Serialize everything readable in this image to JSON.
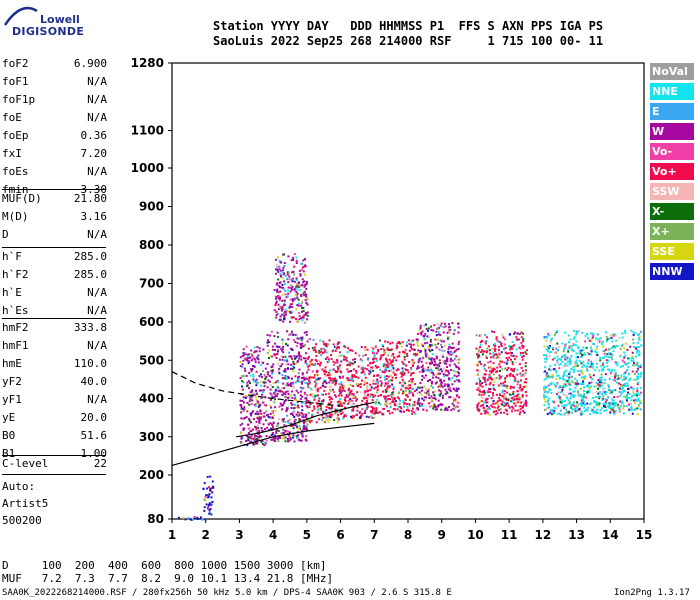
{
  "logo": {
    "line1": "Lowell",
    "line2": "DIGISONDE"
  },
  "header": {
    "line1": "Station YYYY DAY   DDD HHMMSS P1  FFS S AXN PPS IGA PS",
    "line2": "SaoLuis 2022 Sep25 268 214000 RSF     1 715 100 00- 11"
  },
  "params_group1": [
    {
      "name": "foF2",
      "value": "6.900"
    },
    {
      "name": "foF1",
      "value": "N/A"
    },
    {
      "name": "foF1p",
      "value": "N/A"
    },
    {
      "name": "foE",
      "value": "N/A"
    },
    {
      "name": "foEp",
      "value": "0.36"
    },
    {
      "name": "fxI",
      "value": "7.20"
    },
    {
      "name": "foEs",
      "value": "N/A"
    },
    {
      "name": "fmin",
      "value": "3.30"
    }
  ],
  "params_group2": [
    {
      "name": "MUF(D)",
      "value": "21.80"
    },
    {
      "name": "M(D)",
      "value": "3.16"
    },
    {
      "name": "D",
      "value": "N/A"
    }
  ],
  "params_group3": [
    {
      "name": "h`F",
      "value": "285.0"
    },
    {
      "name": "h`F2",
      "value": "285.0"
    },
    {
      "name": "h`E",
      "value": "N/A"
    },
    {
      "name": "h`Es",
      "value": "N/A"
    }
  ],
  "params_group4": [
    {
      "name": "hmF2",
      "value": "333.8"
    },
    {
      "name": "hmF1",
      "value": "N/A"
    },
    {
      "name": "hmE",
      "value": "110.0"
    },
    {
      "name": "yF2",
      "value": "40.0"
    },
    {
      "name": "yF1",
      "value": "N/A"
    },
    {
      "name": "yE",
      "value": "20.0"
    },
    {
      "name": "B0",
      "value": "51.6"
    },
    {
      "name": "B1",
      "value": "1.00"
    }
  ],
  "clevel": {
    "name": "C-level",
    "value": "22"
  },
  "autoscale": {
    "line1": "Auto:",
    "line2": "Artist5",
    "line3": "500200"
  },
  "legend": [
    {
      "label": "NoVal",
      "color": "#9e9e9e"
    },
    {
      "label": "NNE",
      "color": "#14e4ee"
    },
    {
      "label": "E",
      "color": "#3aa7f0"
    },
    {
      "label": "W",
      "color": "#a6079e"
    },
    {
      "label": "Vo-",
      "color": "#f040a8"
    },
    {
      "label": "Vo+",
      "color": "#f00a4e"
    },
    {
      "label": "SSW",
      "color": "#f7b4b4"
    },
    {
      "label": "X-",
      "color": "#0b6e0b"
    },
    {
      "label": "X+",
      "color": "#7cb35a"
    },
    {
      "label": "SSE",
      "color": "#d6d610"
    },
    {
      "label": "NNW",
      "color": "#1414c8"
    }
  ],
  "bottom": {
    "d_row": "D     100  200  400  600  800 1000 1500 3000 [km]",
    "muf_row": "MUF   7.2  7.3  7.7  8.2  9.0 10.1 13.4 21.8 [MHz]",
    "footer_left": "SAA0K_2022268214000.RSF / 280fx256h 50 kHz 5.0 km / DPS-4 SAA0K 903 / 2.6 S 315.8 E",
    "footer_right": "Ion2Png 1.3.17"
  },
  "chart_data": {
    "type": "scatter",
    "xlim": [
      1,
      15
    ],
    "x_ticks": [
      "1",
      "2",
      "3",
      "4",
      "5",
      "6",
      "7",
      "8",
      "9",
      "10",
      "11",
      "12",
      "13",
      "14",
      "15"
    ],
    "y_axis_note": "piecewise: 80-600 linear, 600-1280 compressed",
    "y_ticks": [
      "80",
      "200",
      "300",
      "400",
      "500",
      "600",
      "700",
      "800",
      "900",
      "1000",
      "1100",
      "1280"
    ],
    "echo_clusters": [
      {
        "x": [
          1.0,
          2.1
        ],
        "y": [
          80,
          90
        ],
        "dominant": "NNW"
      },
      {
        "x": [
          1.9,
          2.2
        ],
        "y": [
          95,
          200
        ],
        "dominant": "NNW"
      },
      {
        "x": [
          3.0,
          3.8
        ],
        "y": [
          280,
          540
        ],
        "dominant": "W"
      },
      {
        "x": [
          3.8,
          5.0
        ],
        "y": [
          290,
          580
        ],
        "dominant": "W"
      },
      {
        "x": [
          4.0,
          5.0
        ],
        "y": [
          600,
          780
        ],
        "dominant": "W"
      },
      {
        "x": [
          5.0,
          6.0
        ],
        "y": [
          340,
          560
        ],
        "dominant": "Vo+"
      },
      {
        "x": [
          6.0,
          7.0
        ],
        "y": [
          350,
          540
        ],
        "dominant": "Vo+"
      },
      {
        "x": [
          7.0,
          8.2
        ],
        "y": [
          360,
          560
        ],
        "dominant": "Vo+"
      },
      {
        "x": [
          8.2,
          9.5
        ],
        "y": [
          370,
          600
        ],
        "dominant": "W"
      },
      {
        "x": [
          10.0,
          11.5
        ],
        "y": [
          360,
          580
        ],
        "dominant": "Vo+"
      },
      {
        "x": [
          12.0,
          14.9
        ],
        "y": [
          360,
          580
        ],
        "dominant": "NNE"
      }
    ],
    "profile_curves": [
      {
        "name": "lower trace",
        "x": [
          1.0,
          2.0,
          3.0,
          4.0,
          5.0,
          6.0,
          7.0
        ],
        "y": [
          225,
          250,
          275,
          300,
          315,
          325,
          335
        ]
      },
      {
        "name": "upper trace",
        "x": [
          2.9,
          3.6,
          4.5,
          5.3,
          6.2,
          7.0
        ],
        "y": [
          300,
          310,
          330,
          355,
          375,
          390
        ]
      },
      {
        "name": "dashed extrapolation",
        "x": [
          1.0,
          1.7,
          2.5,
          3.2,
          4.0,
          5.0,
          6.0
        ],
        "y": [
          470,
          440,
          420,
          410,
          400,
          390,
          380
        ]
      }
    ]
  }
}
